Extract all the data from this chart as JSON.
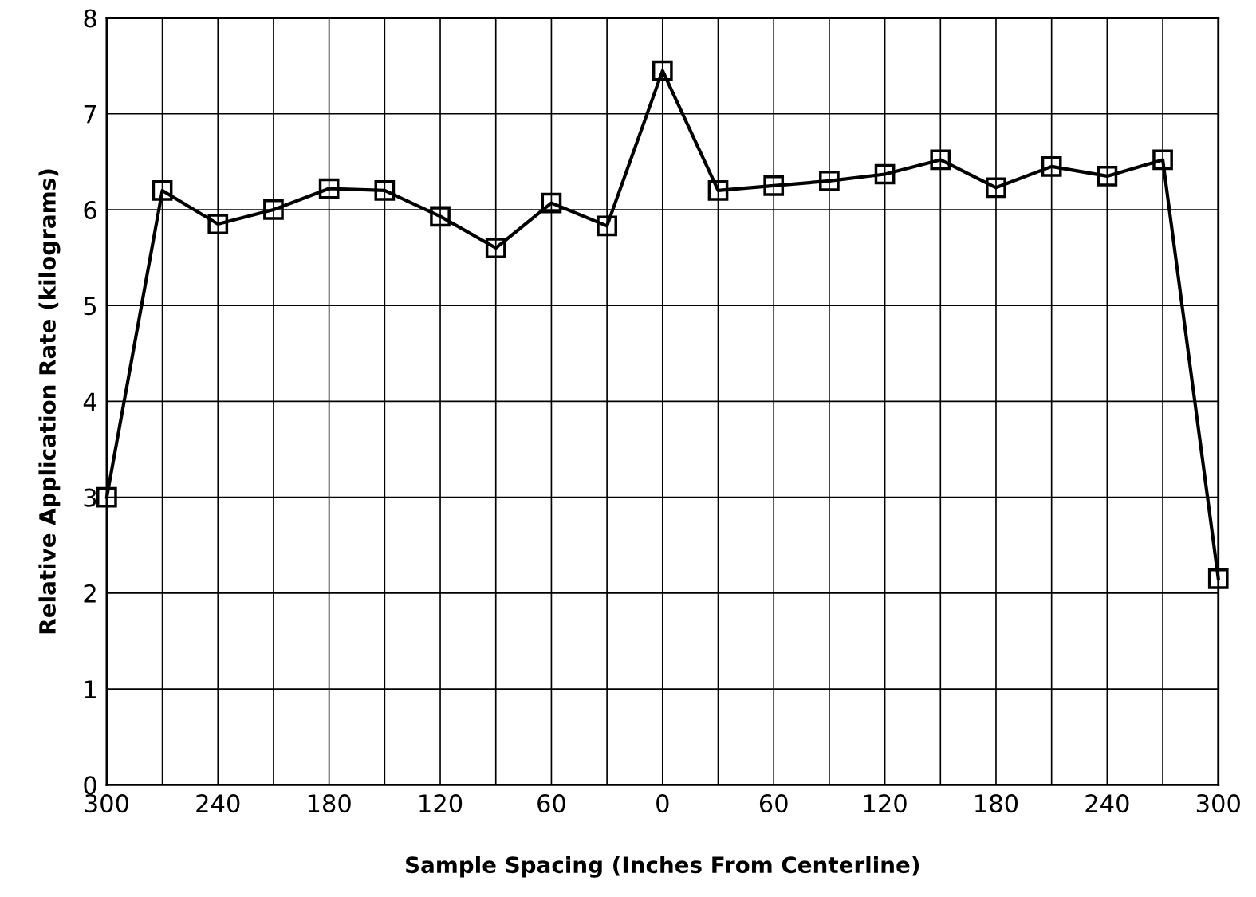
{
  "chart_data": {
    "type": "line",
    "xlabel": "Sample Spacing (Inches From Centerline)",
    "ylabel": "Relative Application Rate (kilograms)",
    "x": [
      -300,
      -270,
      -240,
      -210,
      -180,
      -150,
      -120,
      -90,
      -60,
      -30,
      0,
      30,
      60,
      90,
      120,
      150,
      180,
      210,
      240,
      270,
      300
    ],
    "series": [
      {
        "color": "#000000",
        "values": [
          3.0,
          6.2,
          5.85,
          6.0,
          6.22,
          6.2,
          5.93,
          5.6,
          6.07,
          5.83,
          7.45,
          6.2,
          6.25,
          6.3,
          6.37,
          6.52,
          6.23,
          6.45,
          6.35,
          6.52,
          2.15
        ]
      }
    ],
    "xlim": [
      -300,
      300
    ],
    "ylim": [
      0,
      8
    ],
    "xticks": [
      {
        "value": -300,
        "label": "300"
      },
      {
        "value": -270,
        "label": null
      },
      {
        "value": -240,
        "label": "240"
      },
      {
        "value": -210,
        "label": null
      },
      {
        "value": -180,
        "label": "180"
      },
      {
        "value": -150,
        "label": null
      },
      {
        "value": -120,
        "label": "120"
      },
      {
        "value": -90,
        "label": null
      },
      {
        "value": -60,
        "label": "60"
      },
      {
        "value": -30,
        "label": null
      },
      0,
      {
        "value": 30,
        "label": null
      },
      60,
      {
        "value": 90,
        "label": null
      },
      120,
      {
        "value": 150,
        "label": null
      },
      180,
      {
        "value": 210,
        "label": null
      },
      240,
      {
        "value": 270,
        "label": null
      },
      300
    ],
    "yticks": [
      0,
      1,
      2,
      3,
      4,
      5,
      6,
      7,
      8
    ],
    "grid": true,
    "marker": "square",
    "line_style": "solid"
  }
}
